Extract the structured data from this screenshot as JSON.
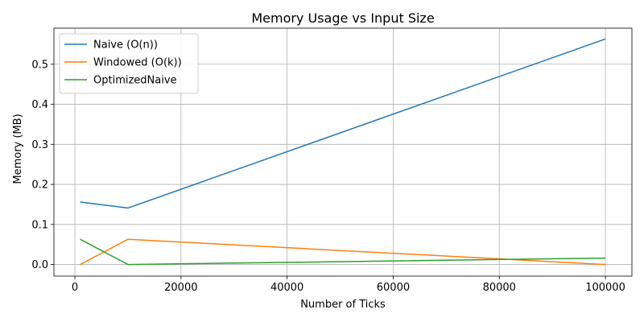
{
  "chart_data": {
    "type": "line",
    "title": "Memory Usage vs Input Size",
    "xlabel": "Number of Ticks",
    "ylabel": "Memory (MB)",
    "xlim": [
      -3950,
      105000
    ],
    "ylim": [
      -0.029,
      0.59
    ],
    "xticks": [
      0,
      20000,
      40000,
      60000,
      80000,
      100000
    ],
    "yticks": [
      0.0,
      0.1,
      0.2,
      0.3,
      0.4,
      0.5
    ],
    "xtick_labels": [
      "0",
      "20000",
      "40000",
      "60000",
      "80000",
      "100000"
    ],
    "ytick_labels": [
      "0.0",
      "0.1",
      "0.2",
      "0.3",
      "0.4",
      "0.5"
    ],
    "grid": true,
    "legend_position": "top-left",
    "x": [
      1000,
      10000,
      100000
    ],
    "series": [
      {
        "name": "Naive (O(n))",
        "color": "#1f77b4",
        "values": [
          0.156,
          0.141,
          0.563
        ]
      },
      {
        "name": "Windowed (O(k))",
        "color": "#ff7f0e",
        "values": [
          0.0,
          0.063,
          0.0
        ]
      },
      {
        "name": "OptimizedNaive",
        "color": "#2ca02c",
        "values": [
          0.063,
          0.0,
          0.016
        ]
      }
    ]
  }
}
